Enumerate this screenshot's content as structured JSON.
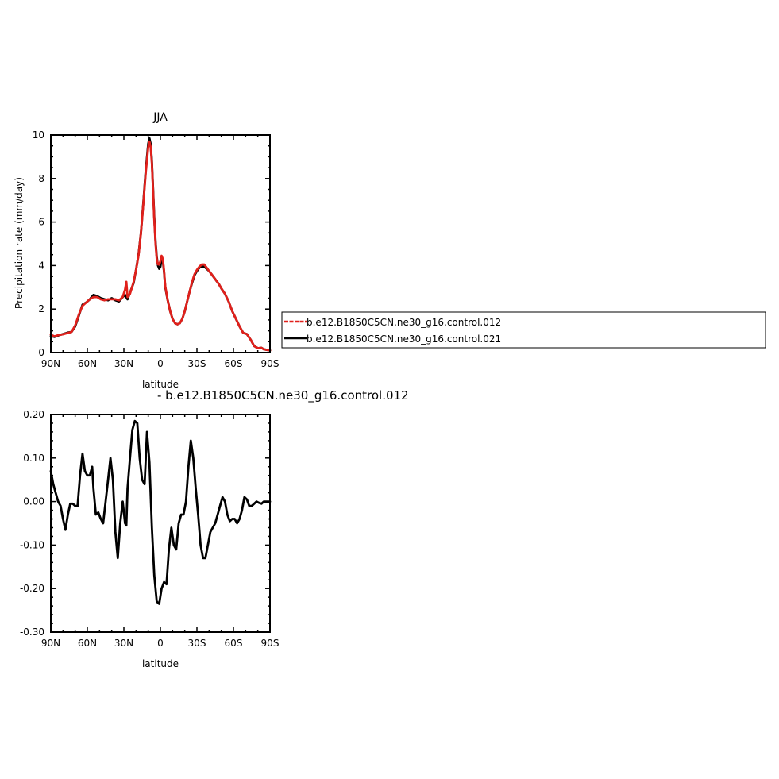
{
  "chart_data": [
    {
      "type": "line",
      "title": "JJA",
      "xlabel": "latitude",
      "ylabel": "Precipitation rate (mm/day)",
      "xlim": [
        90,
        -90
      ],
      "ylim": [
        0,
        10
      ],
      "x_ticks": [
        90,
        60,
        30,
        0,
        -30,
        -60,
        -90
      ],
      "x_tick_labels": [
        "90N",
        "60N",
        "30N",
        "0",
        "30S",
        "60S",
        "90S"
      ],
      "y_ticks": [
        0,
        2,
        4,
        6,
        8,
        10
      ],
      "y_tick_labels": [
        "0",
        "2",
        "4",
        "6",
        "8",
        "10"
      ],
      "legend": {
        "placement": "right",
        "entries": [
          "b.e12.B1850C5CN.ne30_g16.control.012",
          "b.e12.B1850C5CN.ne30_g16.control.021"
        ]
      },
      "series": [
        {
          "name": "b.e12.B1850C5CN.ne30_g16.control.021",
          "color": "#000000",
          "x": [
            90,
            87,
            84,
            80,
            76,
            73,
            70,
            67,
            64,
            61,
            58,
            55,
            52,
            49,
            46,
            43,
            40,
            37,
            34,
            31,
            29,
            27,
            25,
            22,
            20,
            18,
            16,
            14,
            12,
            10,
            9,
            8,
            7,
            6,
            5,
            4,
            3,
            2,
            1,
            0,
            -1,
            -2,
            -3,
            -4,
            -6,
            -8,
            -10,
            -12,
            -14,
            -16,
            -18,
            -20,
            -22,
            -24,
            -26,
            -28,
            -30,
            -32,
            -34,
            -36,
            -38,
            -40,
            -42,
            -44,
            -46,
            -48,
            -50,
            -53,
            -56,
            -59,
            -62,
            -65,
            -68,
            -71,
            -74,
            -77,
            -80,
            -83,
            -85,
            -88,
            -90
          ],
          "y": [
            0.75,
            0.72,
            0.78,
            0.85,
            0.92,
            0.95,
            1.2,
            1.7,
            2.2,
            2.3,
            2.45,
            2.65,
            2.6,
            2.5,
            2.45,
            2.4,
            2.5,
            2.4,
            2.35,
            2.55,
            2.65,
            2.45,
            2.75,
            3.2,
            3.8,
            4.5,
            5.5,
            6.9,
            8.4,
            9.6,
            9.85,
            9.6,
            8.8,
            7.5,
            6.2,
            5.1,
            4.4,
            4.0,
            3.85,
            3.95,
            4.3,
            4.2,
            3.7,
            3.0,
            2.4,
            1.9,
            1.55,
            1.35,
            1.3,
            1.35,
            1.55,
            1.9,
            2.35,
            2.8,
            3.2,
            3.55,
            3.75,
            3.9,
            3.95,
            3.95,
            3.85,
            3.75,
            3.6,
            3.45,
            3.3,
            3.15,
            2.95,
            2.7,
            2.35,
            1.9,
            1.55,
            1.2,
            0.9,
            0.85,
            0.6,
            0.3,
            0.2,
            0.22,
            0.15,
            0.12,
            0.1
          ]
        },
        {
          "name": "b.e12.B1850C5CN.ne30_g16.control.012",
          "color": "#e0201b",
          "x": [
            90,
            87,
            84,
            80,
            76,
            73,
            70,
            67,
            64,
            61,
            58,
            55,
            52,
            49,
            46,
            43,
            40,
            37,
            34,
            31,
            29,
            28,
            27,
            25,
            22,
            20,
            18,
            16,
            14,
            12,
            10,
            9,
            8,
            7,
            6,
            5,
            4,
            3,
            2,
            1,
            0,
            -1,
            -2,
            -3,
            -4,
            -6,
            -8,
            -10,
            -12,
            -14,
            -16,
            -18,
            -20,
            -22,
            -24,
            -26,
            -28,
            -30,
            -32,
            -34,
            -36,
            -38,
            -40,
            -42,
            -44,
            -46,
            -48,
            -50,
            -53,
            -56,
            -59,
            -62,
            -65,
            -68,
            -71,
            -74,
            -77,
            -80,
            -83,
            -85,
            -88,
            -90
          ],
          "y": [
            0.82,
            0.74,
            0.8,
            0.84,
            0.9,
            0.95,
            1.25,
            1.75,
            2.15,
            2.3,
            2.45,
            2.55,
            2.55,
            2.45,
            2.4,
            2.45,
            2.45,
            2.45,
            2.4,
            2.55,
            2.9,
            3.25,
            2.55,
            2.7,
            3.25,
            3.8,
            4.45,
            5.5,
            6.85,
            8.3,
            9.45,
            9.7,
            9.45,
            8.7,
            7.4,
            6.1,
            5.0,
            4.3,
            4.05,
            4.05,
            4.2,
            4.45,
            4.3,
            3.75,
            3.05,
            2.4,
            1.9,
            1.55,
            1.35,
            1.3,
            1.35,
            1.55,
            1.9,
            2.35,
            2.8,
            3.25,
            3.6,
            3.8,
            3.95,
            4.05,
            4.05,
            3.9,
            3.75,
            3.6,
            3.45,
            3.3,
            3.15,
            2.95,
            2.7,
            2.35,
            1.9,
            1.55,
            1.2,
            0.9,
            0.85,
            0.6,
            0.3,
            0.2,
            0.22,
            0.15,
            0.12,
            0.1
          ]
        }
      ]
    },
    {
      "type": "line",
      "title": "- b.e12.B1850C5CN.ne30_g16.control.012",
      "xlabel": "latitude",
      "ylabel": "",
      "xlim": [
        90,
        -90
      ],
      "ylim": [
        -0.3,
        0.2
      ],
      "x_ticks": [
        90,
        60,
        30,
        0,
        -30,
        -60,
        -90
      ],
      "x_tick_labels": [
        "90N",
        "60N",
        "30N",
        "0",
        "30S",
        "60S",
        "90S"
      ],
      "y_ticks": [
        0.2,
        0.1,
        0.0,
        -0.1,
        -0.2,
        -0.3
      ],
      "y_tick_labels": [
        "0.20",
        "0.10",
        "0.00",
        "-0.10",
        "-0.20",
        "-0.30"
      ],
      "series": [
        {
          "color": "#000000",
          "x": [
            90,
            88,
            86,
            84,
            82,
            80,
            78,
            76,
            74,
            72,
            70,
            68,
            66,
            64,
            62,
            60,
            58,
            56,
            55,
            53,
            51,
            49,
            47,
            45,
            43,
            41,
            39,
            37,
            35,
            33,
            31,
            29,
            28,
            27,
            25,
            23,
            21,
            19,
            17,
            15,
            13,
            11,
            9,
            7,
            5,
            3,
            1,
            -1,
            -3,
            -5,
            -7,
            -9,
            -11,
            -13,
            -15,
            -17,
            -19,
            -21,
            -23,
            -25,
            -27,
            -29,
            -31,
            -33,
            -35,
            -37,
            -39,
            -41,
            -43,
            -45,
            -47,
            -49,
            -51,
            -53,
            -55,
            -57,
            -59,
            -61,
            -63,
            -65,
            -67,
            -69,
            -71,
            -73,
            -75,
            -77,
            -79,
            -81,
            -83,
            -85,
            -87,
            -90
          ],
          "y": [
            0.07,
            0.04,
            0.02,
            0.0,
            -0.01,
            -0.04,
            -0.065,
            -0.03,
            -0.005,
            -0.005,
            -0.01,
            -0.01,
            0.06,
            0.11,
            0.07,
            0.06,
            0.06,
            0.08,
            0.03,
            -0.03,
            -0.025,
            -0.04,
            -0.05,
            0.0,
            0.05,
            0.1,
            0.05,
            -0.07,
            -0.13,
            -0.05,
            0.0,
            -0.05,
            -0.055,
            0.03,
            0.1,
            0.165,
            0.185,
            0.18,
            0.1,
            0.05,
            0.04,
            0.16,
            0.09,
            -0.06,
            -0.17,
            -0.23,
            -0.235,
            -0.2,
            -0.185,
            -0.19,
            -0.11,
            -0.06,
            -0.1,
            -0.11,
            -0.05,
            -0.03,
            -0.03,
            0.0,
            0.08,
            0.14,
            0.1,
            0.03,
            -0.03,
            -0.1,
            -0.13,
            -0.13,
            -0.1,
            -0.07,
            -0.06,
            -0.05,
            -0.03,
            -0.01,
            0.01,
            0.0,
            -0.03,
            -0.045,
            -0.04,
            -0.04,
            -0.05,
            -0.04,
            -0.02,
            0.01,
            0.005,
            -0.01,
            -0.01,
            -0.005,
            0.0,
            -0.003,
            -0.005,
            0.0,
            0.0,
            0.0
          ]
        }
      ]
    }
  ]
}
